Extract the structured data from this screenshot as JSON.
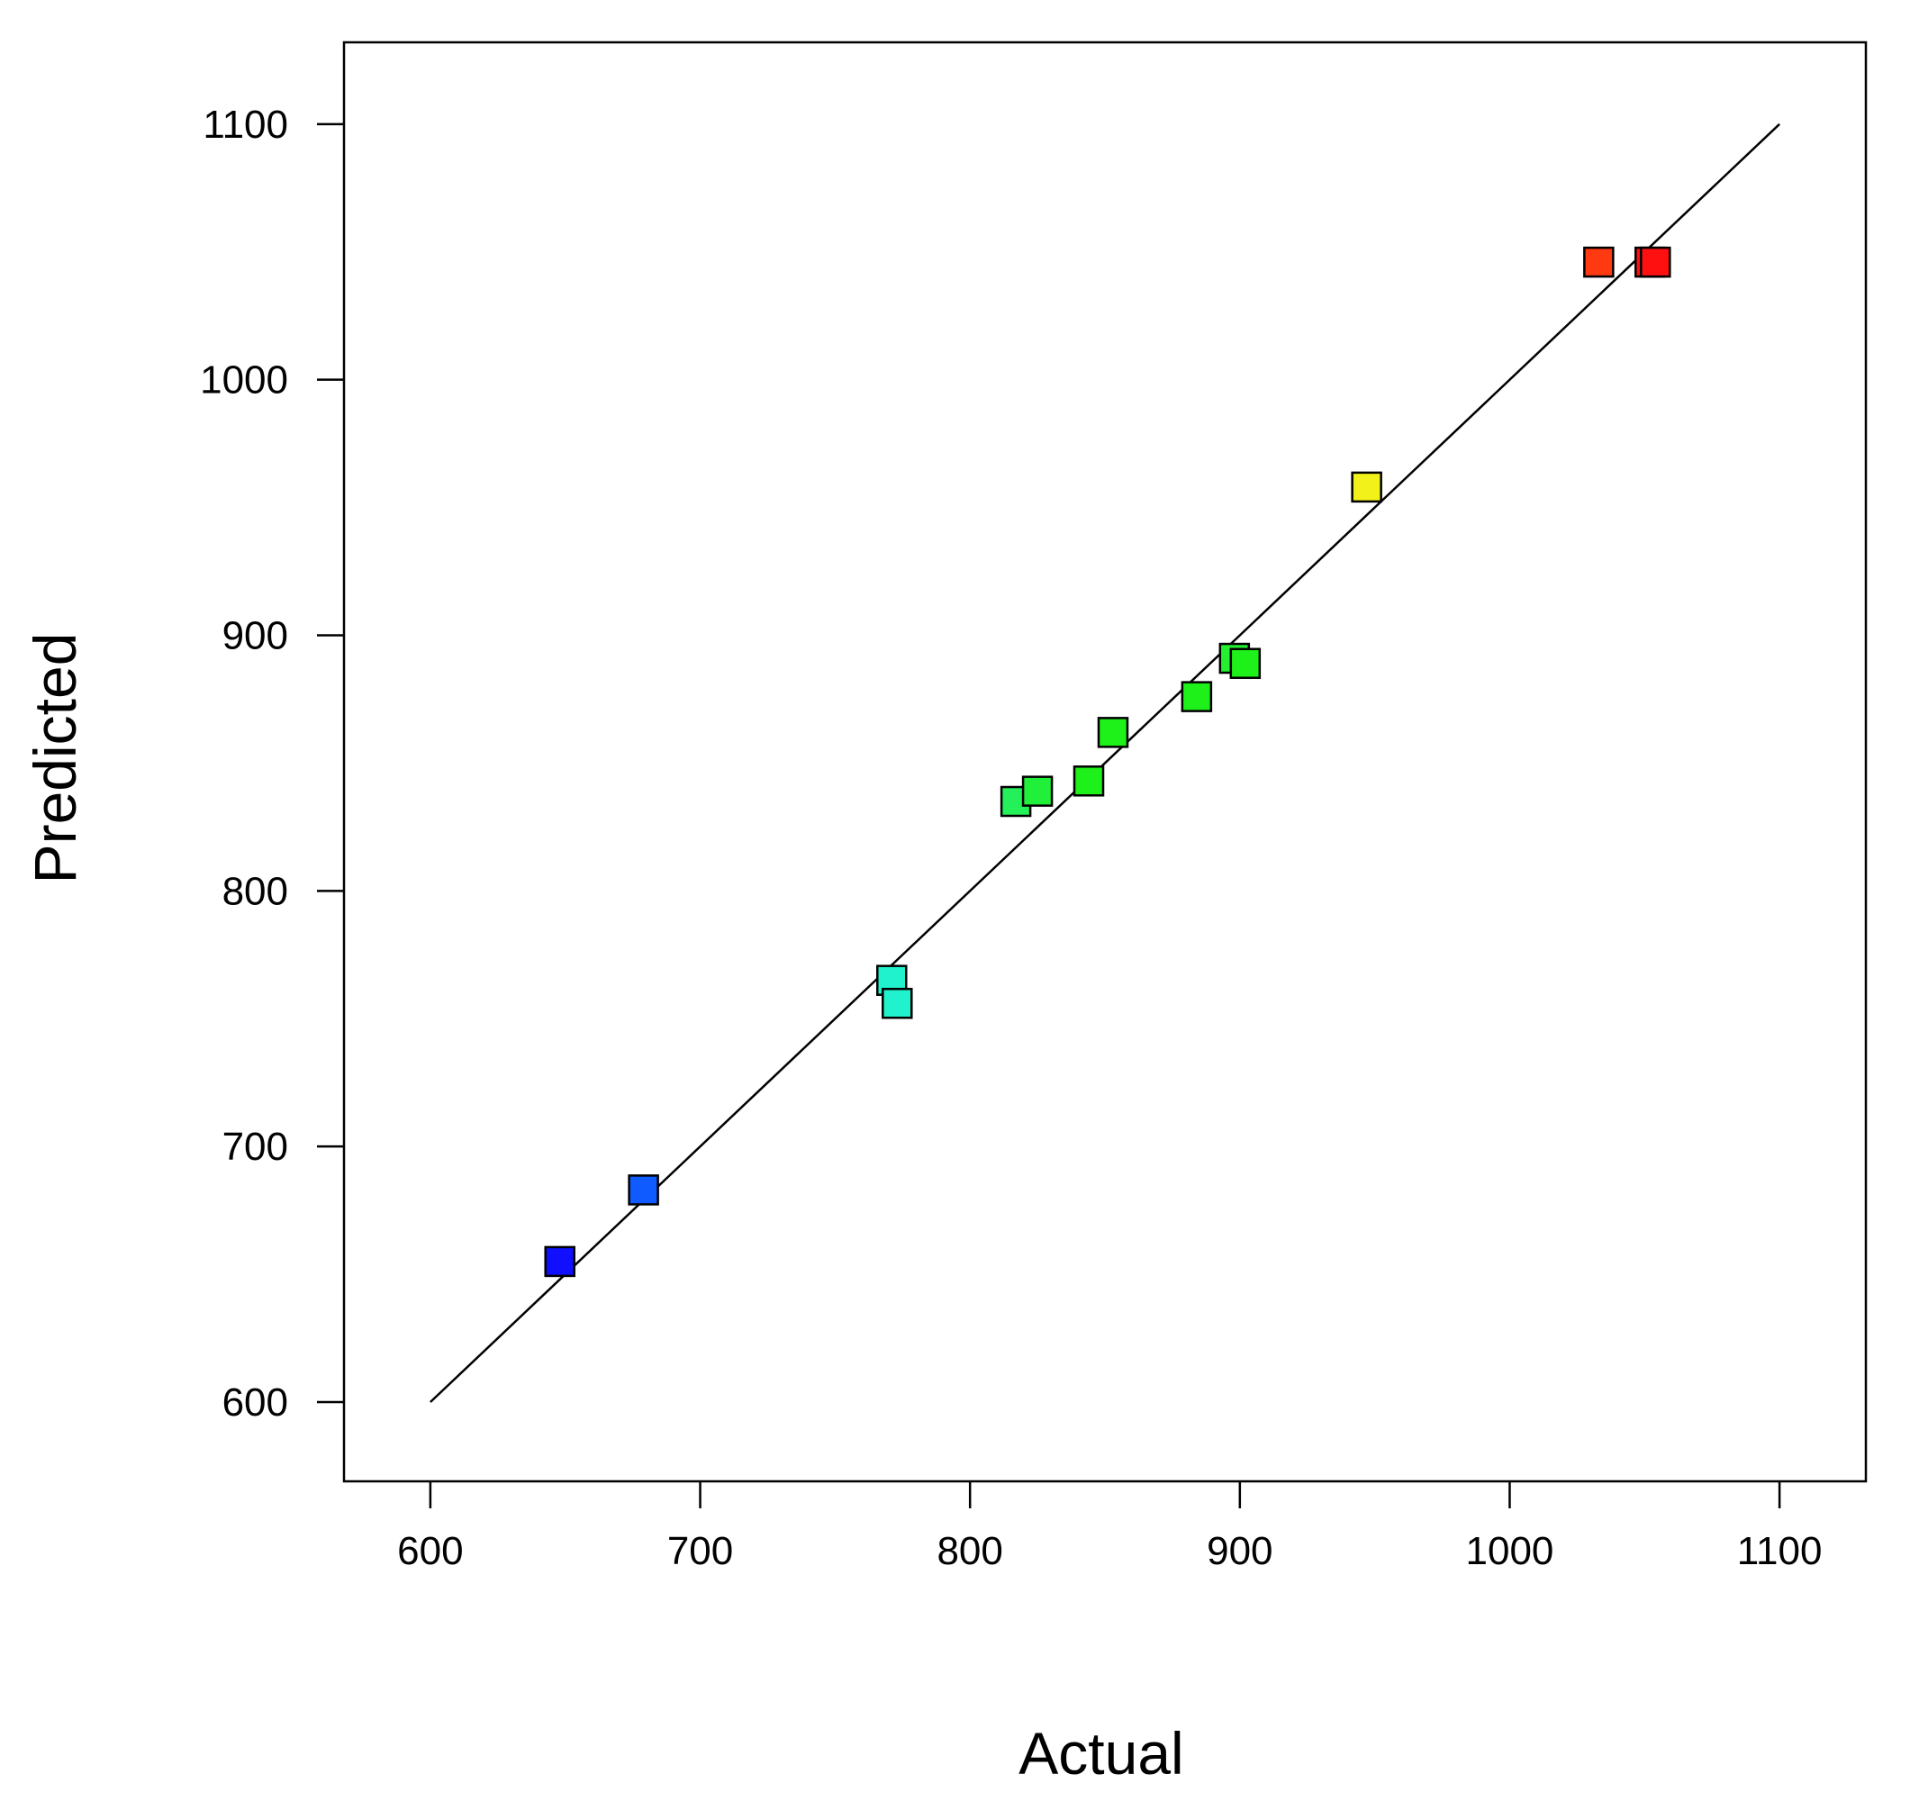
{
  "chart_data": {
    "type": "scatter",
    "xlabel": "Actual",
    "ylabel": "Predicted",
    "xlim": [
      568,
      1132
    ],
    "ylim": [
      569,
      1132
    ],
    "x_ticks": [
      600,
      700,
      800,
      900,
      1000,
      1100
    ],
    "y_ticks": [
      600,
      700,
      800,
      900,
      1000,
      1100
    ],
    "grid": false,
    "legend": "none",
    "reference_line": {
      "x": [
        600,
        1100
      ],
      "y": [
        600,
        1100
      ]
    },
    "points": [
      {
        "x": 648,
        "y": 655,
        "color": "#1010ff"
      },
      {
        "x": 679,
        "y": 683,
        "color": "#0f5bff"
      },
      {
        "x": 771,
        "y": 765,
        "color": "#1ff2cc"
      },
      {
        "x": 773,
        "y": 756,
        "color": "#1ff2cc"
      },
      {
        "x": 817,
        "y": 835,
        "color": "#24f05a"
      },
      {
        "x": 825,
        "y": 839,
        "color": "#21f03a"
      },
      {
        "x": 844,
        "y": 843,
        "color": "#1ef019"
      },
      {
        "x": 853,
        "y": 862,
        "color": "#1ef019"
      },
      {
        "x": 884,
        "y": 876,
        "color": "#1ef019"
      },
      {
        "x": 898,
        "y": 891,
        "color": "#24f030"
      },
      {
        "x": 902,
        "y": 889,
        "color": "#1ef019"
      },
      {
        "x": 947,
        "y": 958,
        "color": "#f2f21a"
      },
      {
        "x": 1033,
        "y": 1046,
        "color": "#ff3a10"
      },
      {
        "x": 1052,
        "y": 1046,
        "color": "#ff1010"
      },
      {
        "x": 1054,
        "y": 1046,
        "color": "#ff1010"
      }
    ]
  }
}
